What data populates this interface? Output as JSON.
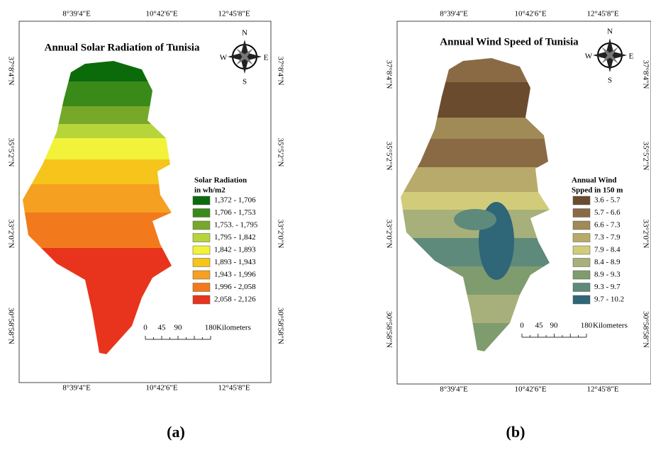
{
  "panels": [
    {
      "title": "Annual Solar Radiation of Tunisia",
      "lon_labels_top": [
        "8°39'4\"E",
        "10°42'6\"E",
        "12°45'8\"E"
      ],
      "lon_labels_bottom": [
        "8°39'4\"E",
        "10°42'6\"E",
        "12°45'8\"E"
      ],
      "lat_labels_left": [
        "37°8'4\"N",
        "35°5'2\"N",
        "33°2'0\"N",
        "30°58'58\"N"
      ],
      "lat_labels_right": [
        "37°8'4\"N",
        "35°5'2\"N",
        "33°2'0\"N",
        "30°58'58\"N"
      ],
      "compass": {
        "n": "N",
        "w": "W",
        "e": "E",
        "s": "S"
      },
      "legend": {
        "title_lines": [
          "Solar Radiation",
          "in wh/m2"
        ],
        "items": [
          {
            "label": "1,372 - 1,706",
            "color": "#0b6b0b"
          },
          {
            "label": "1,706 - 1,753",
            "color": "#3a8a1a"
          },
          {
            "label": "1,753. - 1,795",
            "color": "#78a82a"
          },
          {
            "label": "1,795 - 1,842",
            "color": "#b5d53a"
          },
          {
            "label": "1,842 - 1,893",
            "color": "#f2f23a"
          },
          {
            "label": "1,893 - 1,943",
            "color": "#f5c51c"
          },
          {
            "label": "1,943 - 1,996",
            "color": "#f5a020"
          },
          {
            "label": "1,996 - 2,058",
            "color": "#f27a1c"
          },
          {
            "label": "2,058 - 2,126",
            "color": "#e8341c"
          }
        ]
      },
      "scale": {
        "ticks": [
          "0",
          "45",
          "90",
          "180"
        ],
        "unit": "Kilometers"
      },
      "caption": "(a)"
    },
    {
      "title": "Annual Wind Speed of Tunisia",
      "lon_labels_top": [
        "8°39'4\"E",
        "10°42'6\"E",
        "12°45'8\"E"
      ],
      "lon_labels_bottom": [
        "8°39'4\"E",
        "10°42'6\"E",
        "12°45'8\"E"
      ],
      "lat_labels_left": [
        "37°8'4\"N",
        "35°5'2\"N",
        "33°2'0\"N",
        "30°58'58\"N"
      ],
      "lat_labels_right": [
        "37°8'4\"N",
        "35°5'2\"N",
        "33°2'0\"N",
        "30°58'58\"N"
      ],
      "compass": {
        "n": "N",
        "w": "W",
        "e": "E",
        "s": "S"
      },
      "legend": {
        "title_lines": [
          "Annual Wind",
          "Spped in 150 m"
        ],
        "items": [
          {
            "label": "3.6 - 5.7",
            "color": "#6b4b2e"
          },
          {
            "label": "5.7 - 6.6",
            "color": "#8a6a45"
          },
          {
            "label": "6.6 - 7.3",
            "color": "#a08a55"
          },
          {
            "label": "7.3 - 7.9",
            "color": "#b8aa6a"
          },
          {
            "label": "7.9 - 8.4",
            "color": "#d2cc7a"
          },
          {
            "label": "8.4 - 8.9",
            "color": "#a7b07a"
          },
          {
            "label": "8.9 - 9.3",
            "color": "#7f9c6f"
          },
          {
            "label": "9.3 - 9.7",
            "color": "#5d8a7a"
          },
          {
            "label": "9.7 - 10.2",
            "color": "#2f6678"
          }
        ]
      },
      "scale": {
        "ticks": [
          "0",
          "45",
          "90",
          "180"
        ],
        "unit": "Kilometers"
      },
      "caption": "(b)"
    }
  ]
}
